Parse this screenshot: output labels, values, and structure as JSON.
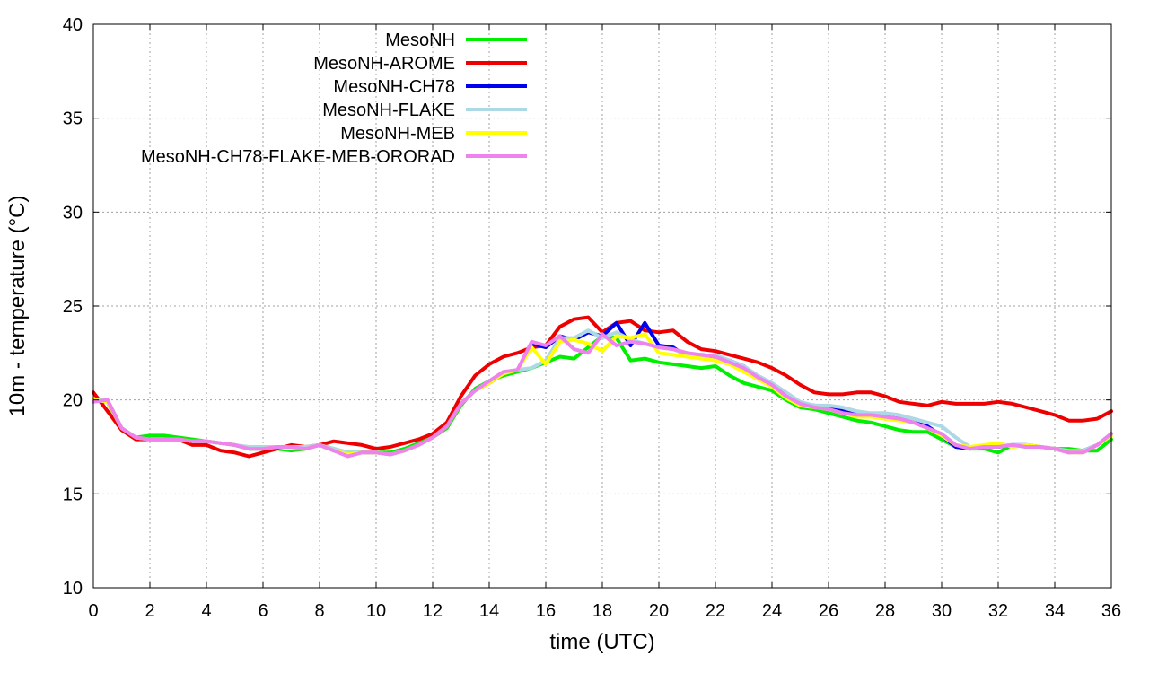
{
  "chart_data": {
    "type": "line",
    "xlabel": "time (UTC)",
    "ylabel": "10m - temperature (°C)",
    "xlim": [
      0,
      36
    ],
    "ylim": [
      10,
      40
    ],
    "xticks": [
      "0",
      "2",
      "4",
      "6",
      "8",
      "10",
      "12",
      "14",
      "16",
      "18",
      "20",
      "22",
      "24",
      "26",
      "28",
      "30",
      "32",
      "34",
      "36"
    ],
    "yticks": [
      "10",
      "15",
      "20",
      "25",
      "30",
      "35",
      "40"
    ],
    "grid": true,
    "legend_position": "top-center",
    "series": [
      {
        "name": "MesoNH",
        "color": "#00ee00",
        "x": [
          0,
          0.5,
          1,
          1.5,
          2,
          2.5,
          3,
          3.5,
          4,
          4.5,
          5,
          5.5,
          6,
          6.5,
          7,
          7.5,
          8,
          8.5,
          9,
          9.5,
          10,
          10.5,
          11,
          11.5,
          12,
          12.5,
          13,
          13.5,
          14,
          14.5,
          15,
          15.5,
          16,
          16.5,
          17,
          17.5,
          18,
          18.5,
          19,
          19.5,
          20,
          20.5,
          21,
          21.5,
          22,
          22.5,
          23,
          23.5,
          24,
          24.5,
          25,
          25.5,
          26,
          26.5,
          27,
          27.5,
          28,
          28.5,
          29,
          29.5,
          30,
          30.5,
          31,
          31.5,
          32,
          32.5,
          33,
          33.5,
          34,
          34.5,
          35,
          35.5,
          36
        ],
        "values": [
          20.0,
          19.9,
          18.4,
          18.0,
          18.1,
          18.1,
          18.0,
          17.9,
          17.8,
          17.7,
          17.6,
          17.4,
          17.4,
          17.4,
          17.3,
          17.4,
          17.6,
          17.4,
          17.2,
          17.2,
          17.2,
          17.2,
          17.4,
          17.7,
          18.0,
          18.5,
          19.7,
          20.6,
          21.0,
          21.3,
          21.5,
          21.7,
          22.0,
          22.3,
          22.2,
          22.8,
          23.4,
          23.3,
          22.1,
          22.2,
          22.0,
          21.9,
          21.8,
          21.7,
          21.8,
          21.3,
          20.9,
          20.7,
          20.5,
          20.0,
          19.6,
          19.5,
          19.3,
          19.1,
          18.9,
          18.8,
          18.6,
          18.4,
          18.3,
          18.3,
          17.9,
          17.5,
          17.4,
          17.4,
          17.2,
          17.6,
          17.5,
          17.5,
          17.4,
          17.4,
          17.3,
          17.3,
          17.9
        ]
      },
      {
        "name": "MesoNH-AROME",
        "color": "#ee0000",
        "x": [
          0,
          0.5,
          1,
          1.5,
          2,
          2.5,
          3,
          3.5,
          4,
          4.5,
          5,
          5.5,
          6,
          6.5,
          7,
          7.5,
          8,
          8.5,
          9,
          9.5,
          10,
          10.5,
          11,
          11.5,
          12,
          12.5,
          13,
          13.5,
          14,
          14.5,
          15,
          15.5,
          16,
          16.5,
          17,
          17.5,
          18,
          18.5,
          19,
          19.5,
          20,
          20.5,
          21,
          21.5,
          22,
          22.5,
          23,
          23.5,
          24,
          24.5,
          25,
          25.5,
          26,
          26.5,
          27,
          27.5,
          28,
          28.5,
          29,
          29.5,
          30,
          30.5,
          31,
          31.5,
          32,
          32.5,
          33,
          33.5,
          34,
          34.5,
          35,
          35.5,
          36
        ],
        "values": [
          20.4,
          19.4,
          18.4,
          17.9,
          17.9,
          17.9,
          17.9,
          17.6,
          17.6,
          17.3,
          17.2,
          17.0,
          17.2,
          17.4,
          17.6,
          17.5,
          17.6,
          17.8,
          17.7,
          17.6,
          17.4,
          17.5,
          17.7,
          17.9,
          18.2,
          18.8,
          20.2,
          21.3,
          21.9,
          22.3,
          22.5,
          22.8,
          22.9,
          23.9,
          24.3,
          24.4,
          23.6,
          24.1,
          24.2,
          23.7,
          23.6,
          23.7,
          23.1,
          22.7,
          22.6,
          22.4,
          22.2,
          22.0,
          21.7,
          21.3,
          20.8,
          20.4,
          20.3,
          20.3,
          20.4,
          20.4,
          20.2,
          19.9,
          19.8,
          19.7,
          19.9,
          19.8,
          19.8,
          19.8,
          19.9,
          19.8,
          19.6,
          19.4,
          19.2,
          18.9,
          18.9,
          19.0,
          19.4
        ]
      },
      {
        "name": "MesoNH-CH78",
        "color": "#0000ee",
        "x": [
          0,
          0.5,
          1,
          1.5,
          2,
          2.5,
          3,
          3.5,
          4,
          4.5,
          5,
          5.5,
          6,
          6.5,
          7,
          7.5,
          8,
          8.5,
          9,
          9.5,
          10,
          10.5,
          11,
          11.5,
          12,
          12.5,
          13,
          13.5,
          14,
          14.5,
          15,
          15.5,
          16,
          16.5,
          17,
          17.5,
          18,
          18.5,
          19,
          19.5,
          20,
          20.5,
          21,
          21.5,
          22,
          22.5,
          23,
          23.5,
          24,
          24.5,
          25,
          25.5,
          26,
          26.5,
          27,
          27.5,
          28,
          28.5,
          29,
          29.5,
          30,
          30.5,
          31,
          31.5,
          32,
          32.5,
          33,
          33.5,
          34,
          34.5,
          35,
          35.5,
          36
        ],
        "values": [
          20.0,
          19.9,
          18.5,
          18.0,
          17.9,
          17.9,
          17.9,
          17.8,
          17.8,
          17.7,
          17.6,
          17.4,
          17.4,
          17.5,
          17.4,
          17.4,
          17.6,
          17.3,
          17.1,
          17.2,
          17.2,
          17.1,
          17.3,
          17.6,
          18.0,
          18.6,
          19.8,
          20.5,
          20.9,
          21.4,
          21.6,
          23.0,
          22.8,
          23.4,
          23.2,
          23.6,
          23.4,
          24.1,
          22.9,
          24.1,
          22.9,
          22.8,
          22.3,
          22.4,
          22.3,
          22.1,
          21.8,
          21.2,
          20.8,
          20.2,
          19.8,
          19.7,
          19.6,
          19.4,
          19.2,
          19.2,
          19.1,
          19.0,
          18.8,
          18.6,
          18.1,
          17.5,
          17.4,
          17.5,
          17.5,
          17.6,
          17.6,
          17.5,
          17.4,
          17.2,
          17.3,
          17.6,
          18.2
        ]
      },
      {
        "name": "MesoNH-FLAKE",
        "color": "#add8e6",
        "x": [
          0,
          0.5,
          1,
          1.5,
          2,
          2.5,
          3,
          3.5,
          4,
          4.5,
          5,
          5.5,
          6,
          6.5,
          7,
          7.5,
          8,
          8.5,
          9,
          9.5,
          10,
          10.5,
          11,
          11.5,
          12,
          12.5,
          13,
          13.5,
          14,
          14.5,
          15,
          15.5,
          16,
          16.5,
          17,
          17.5,
          18,
          18.5,
          19,
          19.5,
          20,
          20.5,
          21,
          21.5,
          22,
          22.5,
          23,
          23.5,
          24,
          24.5,
          25,
          25.5,
          26,
          26.5,
          27,
          27.5,
          28,
          28.5,
          29,
          29.5,
          30,
          30.5,
          31,
          31.5,
          32,
          32.5,
          33,
          33.5,
          34,
          34.5,
          35,
          35.5,
          36
        ],
        "values": [
          20.0,
          20.0,
          18.5,
          18.0,
          17.9,
          17.9,
          17.9,
          17.8,
          17.8,
          17.7,
          17.6,
          17.5,
          17.5,
          17.5,
          17.5,
          17.5,
          17.6,
          17.4,
          17.2,
          17.2,
          17.2,
          17.1,
          17.3,
          17.6,
          18.0,
          18.6,
          19.8,
          20.5,
          21.0,
          21.5,
          21.6,
          21.7,
          22.1,
          23.3,
          23.3,
          23.7,
          23.3,
          23.6,
          23.2,
          23.0,
          22.8,
          22.7,
          22.4,
          22.3,
          22.4,
          22.1,
          21.8,
          21.3,
          20.9,
          20.4,
          19.9,
          19.7,
          19.7,
          19.6,
          19.4,
          19.3,
          19.3,
          19.2,
          19.0,
          18.8,
          18.6,
          18.0,
          17.5,
          17.5,
          17.6,
          17.6,
          17.6,
          17.5,
          17.4,
          17.3,
          17.3,
          17.6,
          18.2
        ]
      },
      {
        "name": "MesoNH-MEB",
        "color": "#ffff00",
        "x": [
          0,
          0.5,
          1,
          1.5,
          2,
          2.5,
          3,
          3.5,
          4,
          4.5,
          5,
          5.5,
          6,
          6.5,
          7,
          7.5,
          8,
          8.5,
          9,
          9.5,
          10,
          10.5,
          11,
          11.5,
          12,
          12.5,
          13,
          13.5,
          14,
          14.5,
          15,
          15.5,
          16,
          16.5,
          17,
          17.5,
          18,
          18.5,
          19,
          19.5,
          20,
          20.5,
          21,
          21.5,
          22,
          22.5,
          23,
          23.5,
          24,
          24.5,
          25,
          25.5,
          26,
          26.5,
          27,
          27.5,
          28,
          28.5,
          29,
          29.5,
          30,
          30.5,
          31,
          31.5,
          32,
          32.5,
          33,
          33.5,
          34,
          34.5,
          35,
          35.5,
          36
        ],
        "values": [
          20.0,
          19.9,
          18.5,
          18.0,
          17.9,
          17.9,
          17.9,
          17.8,
          17.8,
          17.7,
          17.6,
          17.4,
          17.4,
          17.5,
          17.4,
          17.4,
          17.6,
          17.3,
          17.1,
          17.2,
          17.2,
          17.1,
          17.3,
          17.6,
          18.0,
          18.6,
          19.8,
          20.5,
          20.9,
          21.4,
          21.6,
          22.8,
          21.9,
          23.1,
          23.2,
          23.0,
          22.6,
          23.4,
          23.3,
          23.5,
          22.5,
          22.4,
          22.3,
          22.2,
          22.1,
          21.9,
          21.5,
          21.1,
          20.7,
          20.1,
          19.7,
          19.6,
          19.5,
          19.3,
          19.1,
          19.1,
          19.0,
          18.9,
          18.8,
          18.5,
          18.1,
          17.6,
          17.5,
          17.6,
          17.7,
          17.5,
          17.6,
          17.5,
          17.4,
          17.2,
          17.2,
          17.6,
          18.1
        ]
      },
      {
        "name": "MesoNH-CH78-FLAKE-MEB-ORORAD",
        "color": "#ee82ee",
        "x": [
          0,
          0.5,
          1,
          1.5,
          2,
          2.5,
          3,
          3.5,
          4,
          4.5,
          5,
          5.5,
          6,
          6.5,
          7,
          7.5,
          8,
          8.5,
          9,
          9.5,
          10,
          10.5,
          11,
          11.5,
          12,
          12.5,
          13,
          13.5,
          14,
          14.5,
          15,
          15.5,
          16,
          16.5,
          17,
          17.5,
          18,
          18.5,
          19,
          19.5,
          20,
          20.5,
          21,
          21.5,
          22,
          22.5,
          23,
          23.5,
          24,
          24.5,
          25,
          25.5,
          26,
          26.5,
          27,
          27.5,
          28,
          28.5,
          29,
          29.5,
          30,
          30.5,
          31,
          31.5,
          32,
          32.5,
          33,
          33.5,
          34,
          34.5,
          35,
          35.5,
          36
        ],
        "values": [
          19.9,
          20.0,
          18.5,
          18.0,
          17.9,
          17.9,
          17.9,
          17.8,
          17.8,
          17.7,
          17.6,
          17.4,
          17.4,
          17.5,
          17.5,
          17.4,
          17.6,
          17.3,
          17.0,
          17.2,
          17.2,
          17.1,
          17.3,
          17.6,
          18.0,
          18.6,
          19.8,
          20.5,
          21.0,
          21.5,
          21.6,
          23.1,
          22.9,
          23.4,
          22.7,
          22.5,
          23.5,
          22.9,
          23.1,
          23.0,
          22.8,
          22.7,
          22.5,
          22.4,
          22.3,
          22.0,
          21.7,
          21.2,
          20.8,
          20.2,
          19.8,
          19.6,
          19.5,
          19.3,
          19.2,
          19.2,
          19.1,
          19.0,
          18.8,
          18.5,
          18.2,
          17.6,
          17.4,
          17.5,
          17.5,
          17.6,
          17.5,
          17.5,
          17.4,
          17.2,
          17.2,
          17.6,
          18.2
        ]
      }
    ]
  }
}
